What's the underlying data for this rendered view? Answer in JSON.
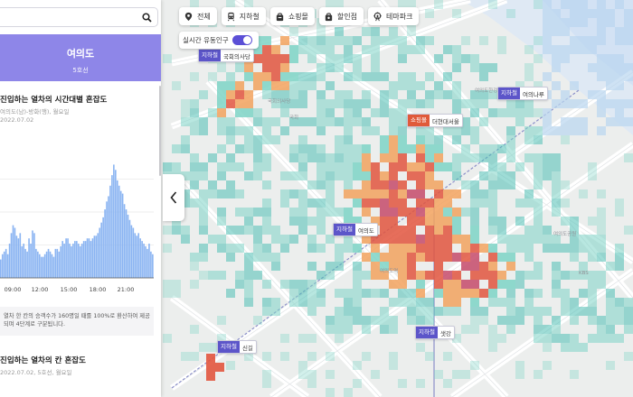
{
  "search": {
    "placeholder": ""
  },
  "station": {
    "name": "여의도",
    "line": "5호선"
  },
  "section1": {
    "title": "진입하는 열차의 시간대별 혼잡도",
    "subtitle": "여의도(남)-방화(행), 월요일",
    "date": "2022.07.02"
  },
  "chart_data": {
    "type": "bar",
    "xlabel": "",
    "ylabel": "",
    "x_tick_labels": [
      "09:00",
      "12:00",
      "15:00",
      "18:00",
      "21:00"
    ],
    "values": [
      14,
      18,
      20,
      22,
      18,
      26,
      34,
      40,
      38,
      32,
      30,
      34,
      24,
      26,
      22,
      20,
      30,
      26,
      36,
      34,
      22,
      20,
      18,
      16,
      16,
      18,
      20,
      22,
      20,
      18,
      16,
      22,
      22,
      20,
      24,
      28,
      26,
      30,
      30,
      26,
      24,
      26,
      28,
      28,
      26,
      24,
      26,
      28,
      28,
      30,
      30,
      28,
      30,
      32,
      32,
      34,
      38,
      42,
      46,
      52,
      58,
      62,
      70,
      78,
      86,
      82,
      74,
      70,
      66,
      64,
      56,
      52,
      48,
      44,
      40,
      38,
      34,
      32,
      34,
      30,
      28,
      26,
      24,
      22,
      26,
      20,
      18
    ],
    "ylim": [
      0,
      100
    ]
  },
  "note": {
    "text": "열차 한 칸의 승객수가 160명일 때를 100%로 환산하여 제공되며 4단계로 구분됩니다."
  },
  "section2": {
    "title": "진입하는 열차의 칸 혼잡도",
    "subtitle": "2022.07.02, 5호선, 월요일"
  },
  "categories": [
    {
      "label": "전체",
      "icon": "map-pin-icon"
    },
    {
      "label": "지하철",
      "icon": "subway-icon"
    },
    {
      "label": "쇼핑몰",
      "icon": "shopping-bag-icon"
    },
    {
      "label": "할인점",
      "icon": "store-bag-icon"
    },
    {
      "label": "테마파크",
      "icon": "ferris-wheel-icon"
    }
  ],
  "realtime": {
    "label": "실시간 유동인구",
    "enabled": true
  },
  "map_pins": [
    {
      "tag": "지하철",
      "name": "국회의사당",
      "kind": "subway"
    },
    {
      "tag": "지하철",
      "name": "여의나루",
      "kind": "subway"
    },
    {
      "tag": "쇼핑몰",
      "name": "더현대서울",
      "kind": "shopping"
    },
    {
      "tag": "지하철",
      "name": "여의도",
      "kind": "subway"
    },
    {
      "tag": "지하철",
      "name": "샛강",
      "kind": "subway"
    },
    {
      "tag": "지하철",
      "name": "신길",
      "kind": "subway"
    }
  ],
  "colors": {
    "accent": "#5b4fd6",
    "station_header": "#8e86e8",
    "bar": "#8ab4f2",
    "heat_low": "#7ed3c6",
    "heat_mid": "#f2a25e",
    "heat_high": "#e2553e",
    "heat_max": "#c64a6a"
  }
}
